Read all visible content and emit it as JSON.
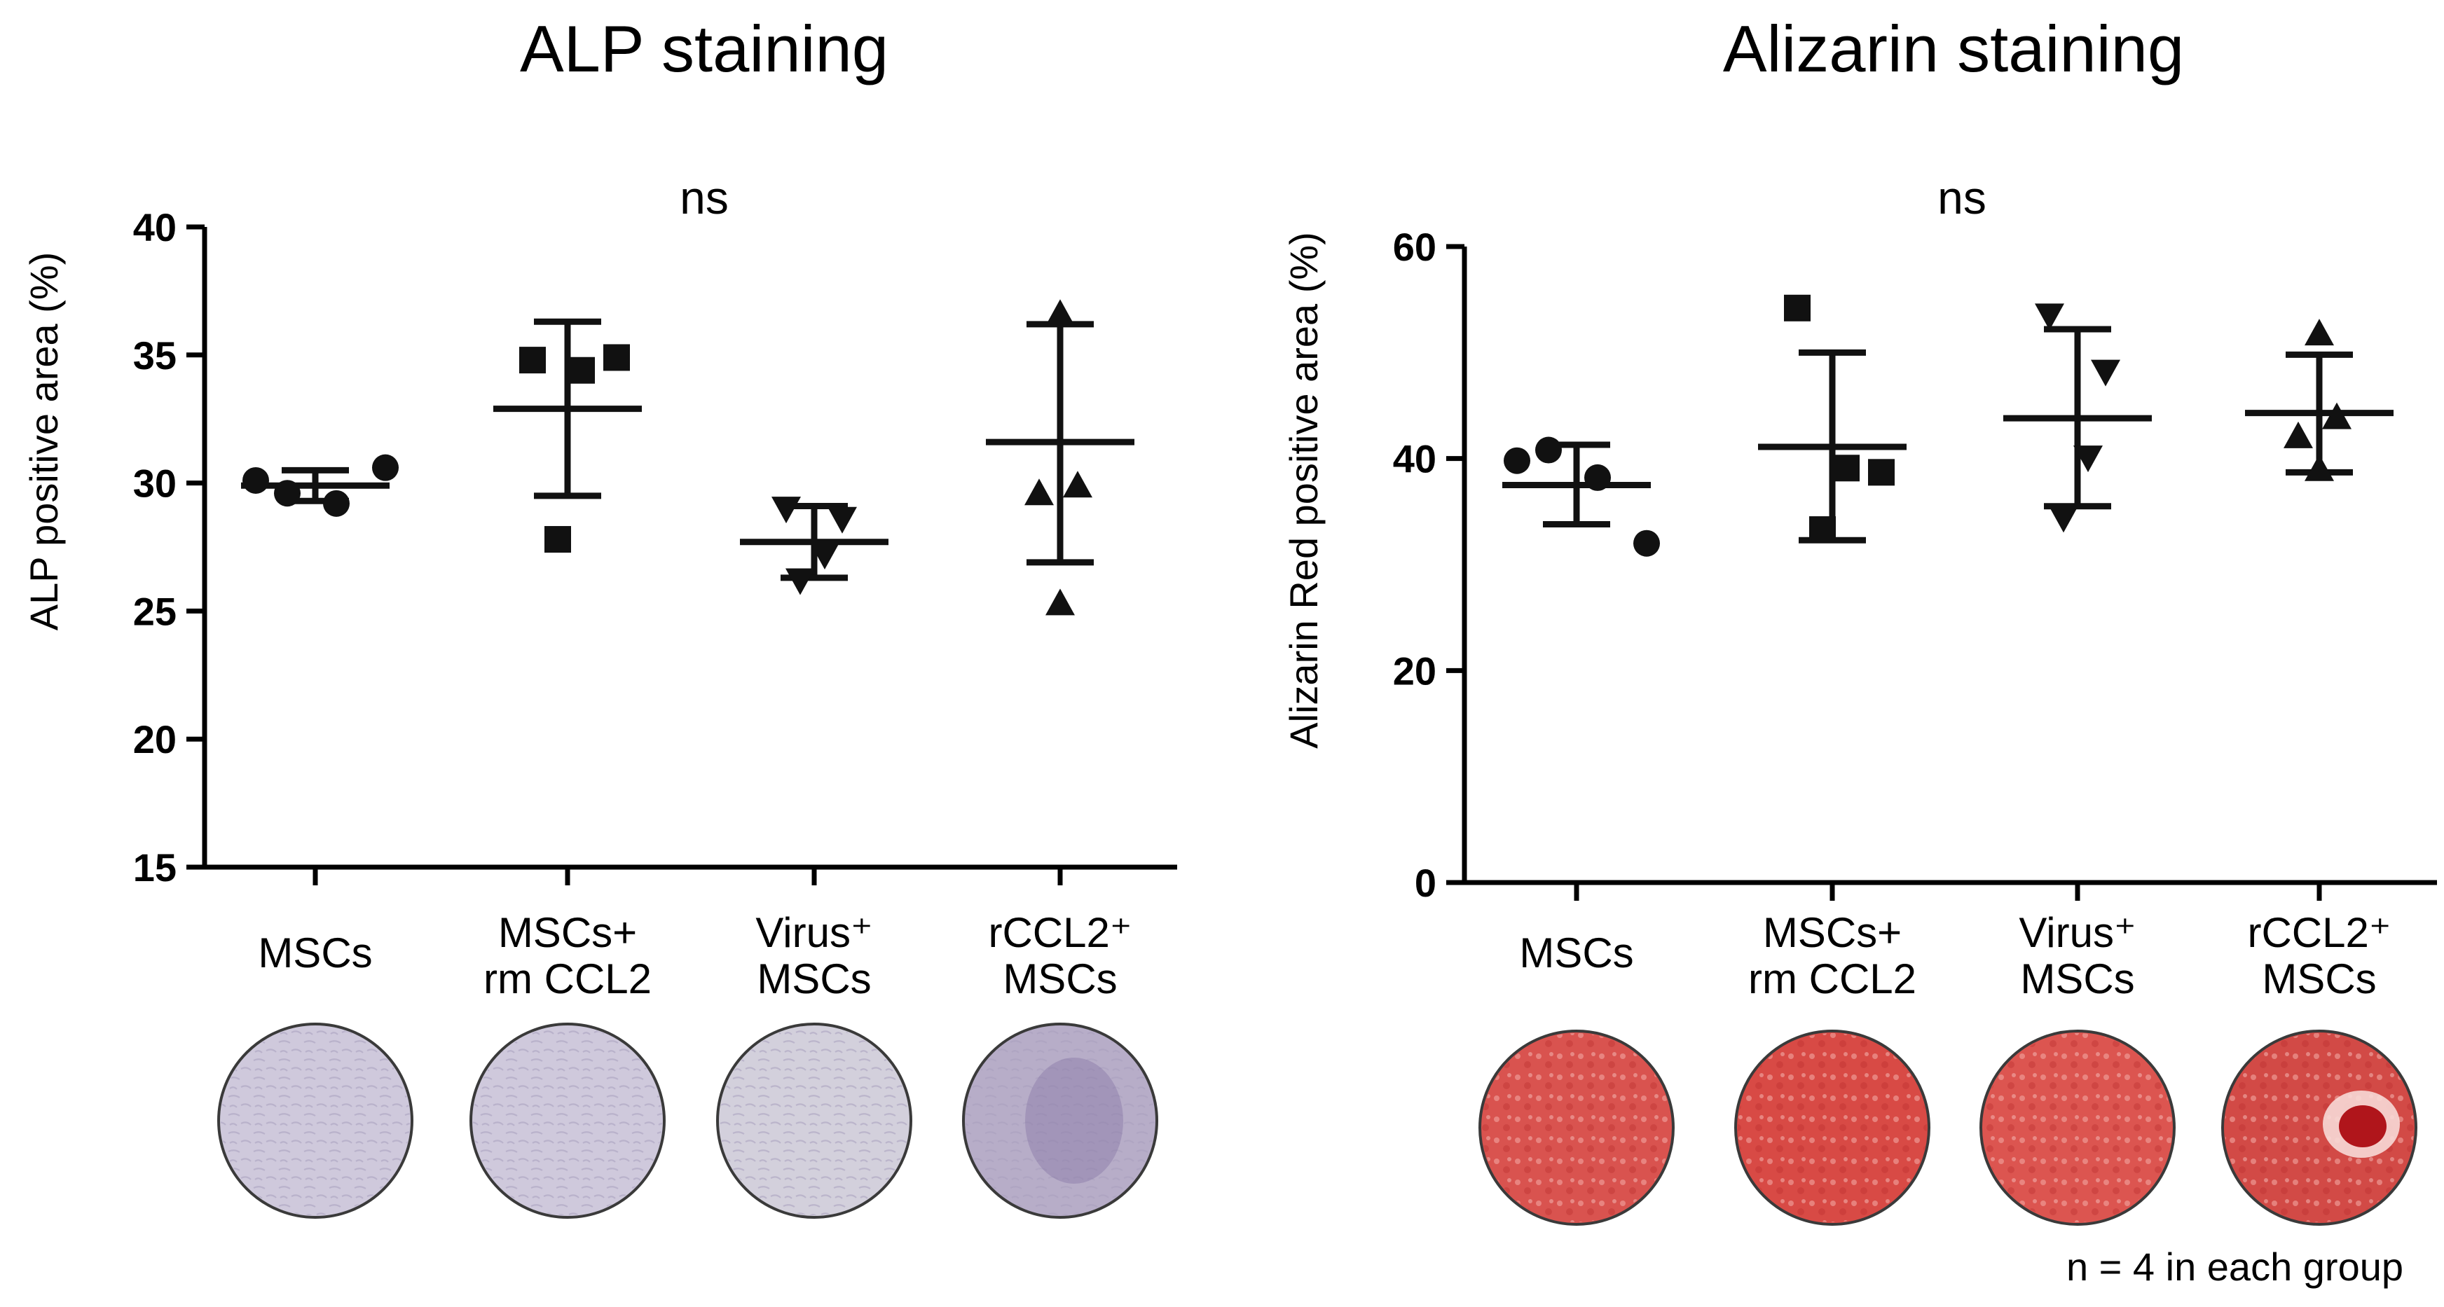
{
  "chart_data": [
    {
      "type": "scatter",
      "title": "ALP staining",
      "annotation": "ns",
      "ylabel": "ALP positive area (%)",
      "ylim": [
        15,
        40
      ],
      "yticks": [
        "40",
        "35",
        "30",
        "25",
        "20",
        "15"
      ],
      "categories": [
        {
          "line1": "MSCs",
          "line2": ""
        },
        {
          "line1": "MSCs+",
          "line2": "rm CCL2"
        },
        {
          "line1": "Virus⁺",
          "line2": "MSCs"
        },
        {
          "line1": "rCCL2⁺",
          "line2": "MSCs"
        }
      ],
      "markers": [
        "circle",
        "square",
        "triangle-down",
        "triangle-up"
      ],
      "series": [
        {
          "name": "MSCs",
          "points": [
            30.1,
            29.2,
            29.6,
            30.6
          ],
          "mean": 29.9,
          "sd_low": 29.3,
          "sd_high": 30.5
        },
        {
          "name": "MSCs+ rm CCL2",
          "points": [
            34.8,
            34.4,
            34.9,
            27.8
          ],
          "mean": 32.9,
          "sd_low": 29.5,
          "sd_high": 36.3
        },
        {
          "name": "Virus⁺ MSCs",
          "points": [
            29.0,
            28.6,
            27.2,
            26.2
          ],
          "mean": 27.7,
          "sd_low": 26.3,
          "sd_high": 29.1
        },
        {
          "name": "rCCL2⁺ MSCs",
          "points": [
            36.6,
            29.9,
            29.6,
            25.3
          ],
          "mean": 31.6,
          "sd_low": 26.9,
          "sd_high": 36.2
        }
      ],
      "wells": [
        "#cfc9dc",
        "#cfc9dc",
        "#d3d0dc",
        "#b7adc8"
      ]
    },
    {
      "type": "scatter",
      "title": "Alizarin staining",
      "annotation": "ns",
      "ylabel": "Alizarin Red positive area (%)",
      "ylim": [
        0,
        60
      ],
      "yticks": [
        "60",
        "40",
        "20",
        "0"
      ],
      "categories": [
        {
          "line1": "MSCs",
          "line2": ""
        },
        {
          "line1": "MSCs+",
          "line2": "rm CCL2"
        },
        {
          "line1": "Virus⁺",
          "line2": "MSCs"
        },
        {
          "line1": "rCCL2⁺",
          "line2": "MSCs"
        }
      ],
      "markers": [
        "circle",
        "square",
        "triangle-down",
        "triangle-up"
      ],
      "series": [
        {
          "name": "MSCs",
          "points": [
            39.8,
            38.2,
            40.8,
            32.0
          ],
          "mean": 37.5,
          "sd_low": 33.8,
          "sd_high": 41.3
        },
        {
          "name": "MSCs+ rm CCL2",
          "points": [
            54.2,
            39.1,
            38.7,
            33.3
          ],
          "mean": 41.1,
          "sd_low": 32.3,
          "sd_high": 50.0
        },
        {
          "name": "Virus⁺ MSCs",
          "points": [
            53.5,
            48.2,
            40.1,
            34.4
          ],
          "mean": 43.8,
          "sd_low": 35.5,
          "sd_high": 52.2
        },
        {
          "name": "rCCL2⁺ MSCs",
          "points": [
            51.8,
            43.9,
            42.1,
            39.0
          ],
          "mean": 44.3,
          "sd_low": 38.7,
          "sd_high": 49.8
        }
      ],
      "wells": [
        "#d9534f",
        "#d84a45",
        "#dc5550",
        "#d24a46"
      ]
    }
  ],
  "footnote": "n = 4 in each group"
}
